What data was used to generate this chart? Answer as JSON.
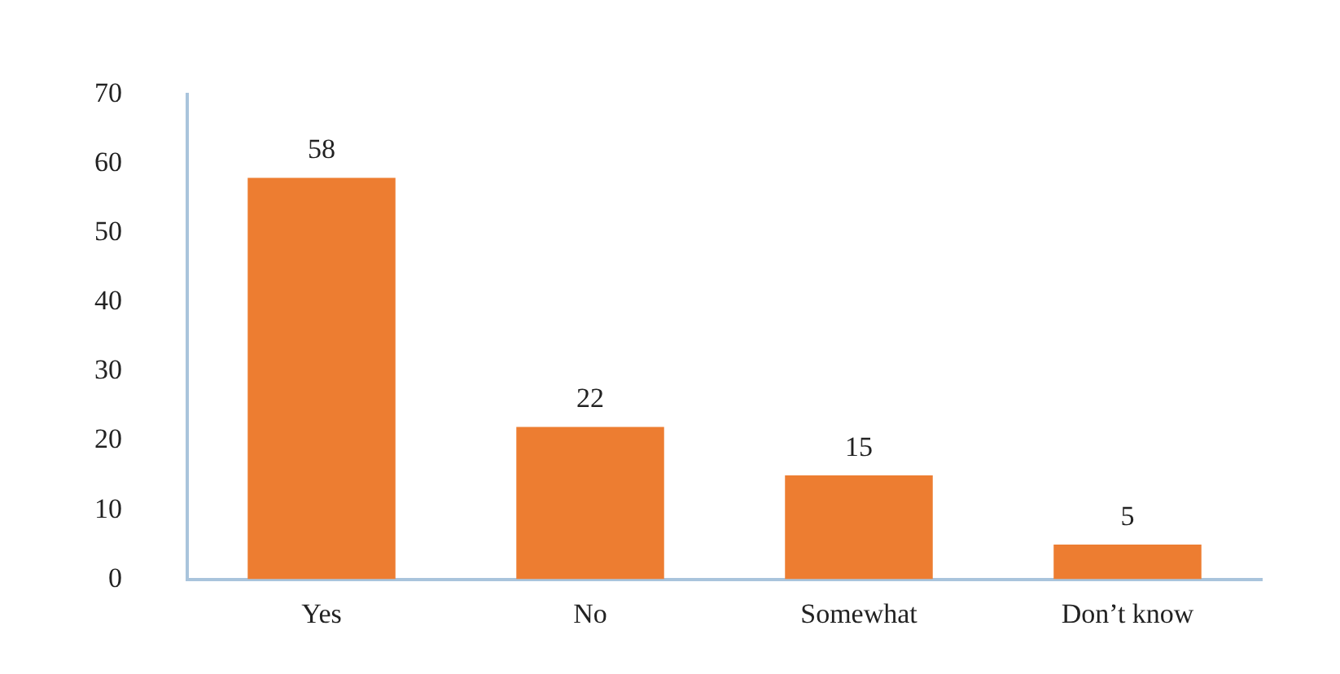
{
  "chart_data": {
    "type": "bar",
    "categories": [
      "Yes",
      "No",
      "Somewhat",
      "Don’t know"
    ],
    "values": [
      58,
      22,
      15,
      5
    ],
    "color": "#ed7d31",
    "ylim": [
      0,
      70
    ],
    "yticks": [
      0,
      10,
      20,
      30,
      40,
      50,
      60,
      70
    ],
    "grid": false,
    "data_labels": true
  }
}
